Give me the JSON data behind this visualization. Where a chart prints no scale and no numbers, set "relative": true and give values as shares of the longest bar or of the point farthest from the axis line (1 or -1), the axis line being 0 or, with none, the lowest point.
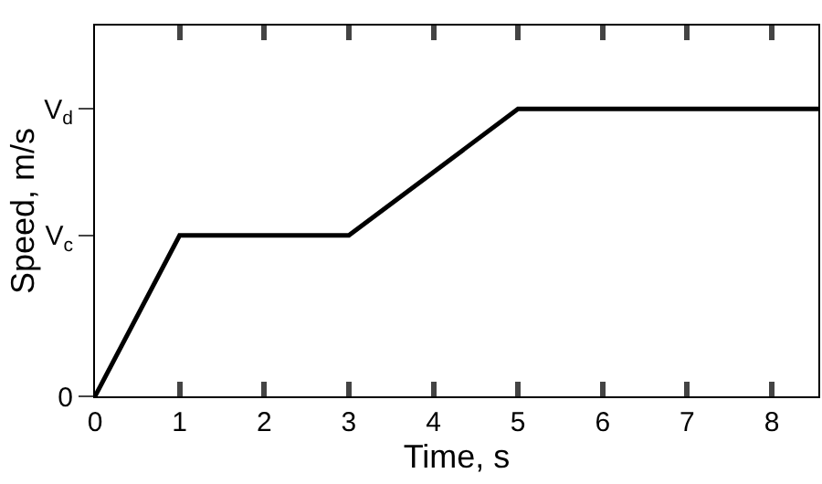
{
  "chart_data": {
    "type": "line",
    "relative": true,
    "xlabel": "Time, s",
    "ylabel": "Speed, m/s",
    "x": [
      0,
      1,
      3,
      5,
      8.55
    ],
    "series": [
      {
        "color": "#000000",
        "values": [
          0,
          0.56,
          0.56,
          1,
          1
        ]
      }
    ],
    "xlim": [
      0,
      8.55
    ],
    "xticks": [
      0,
      1,
      2,
      3,
      4,
      5,
      6,
      7,
      8
    ],
    "annotations": [
      "0",
      "V$_{c}$",
      "V$_{d}$"
    ],
    "legend": false,
    "marker": "none",
    "line_style": "solid"
  }
}
